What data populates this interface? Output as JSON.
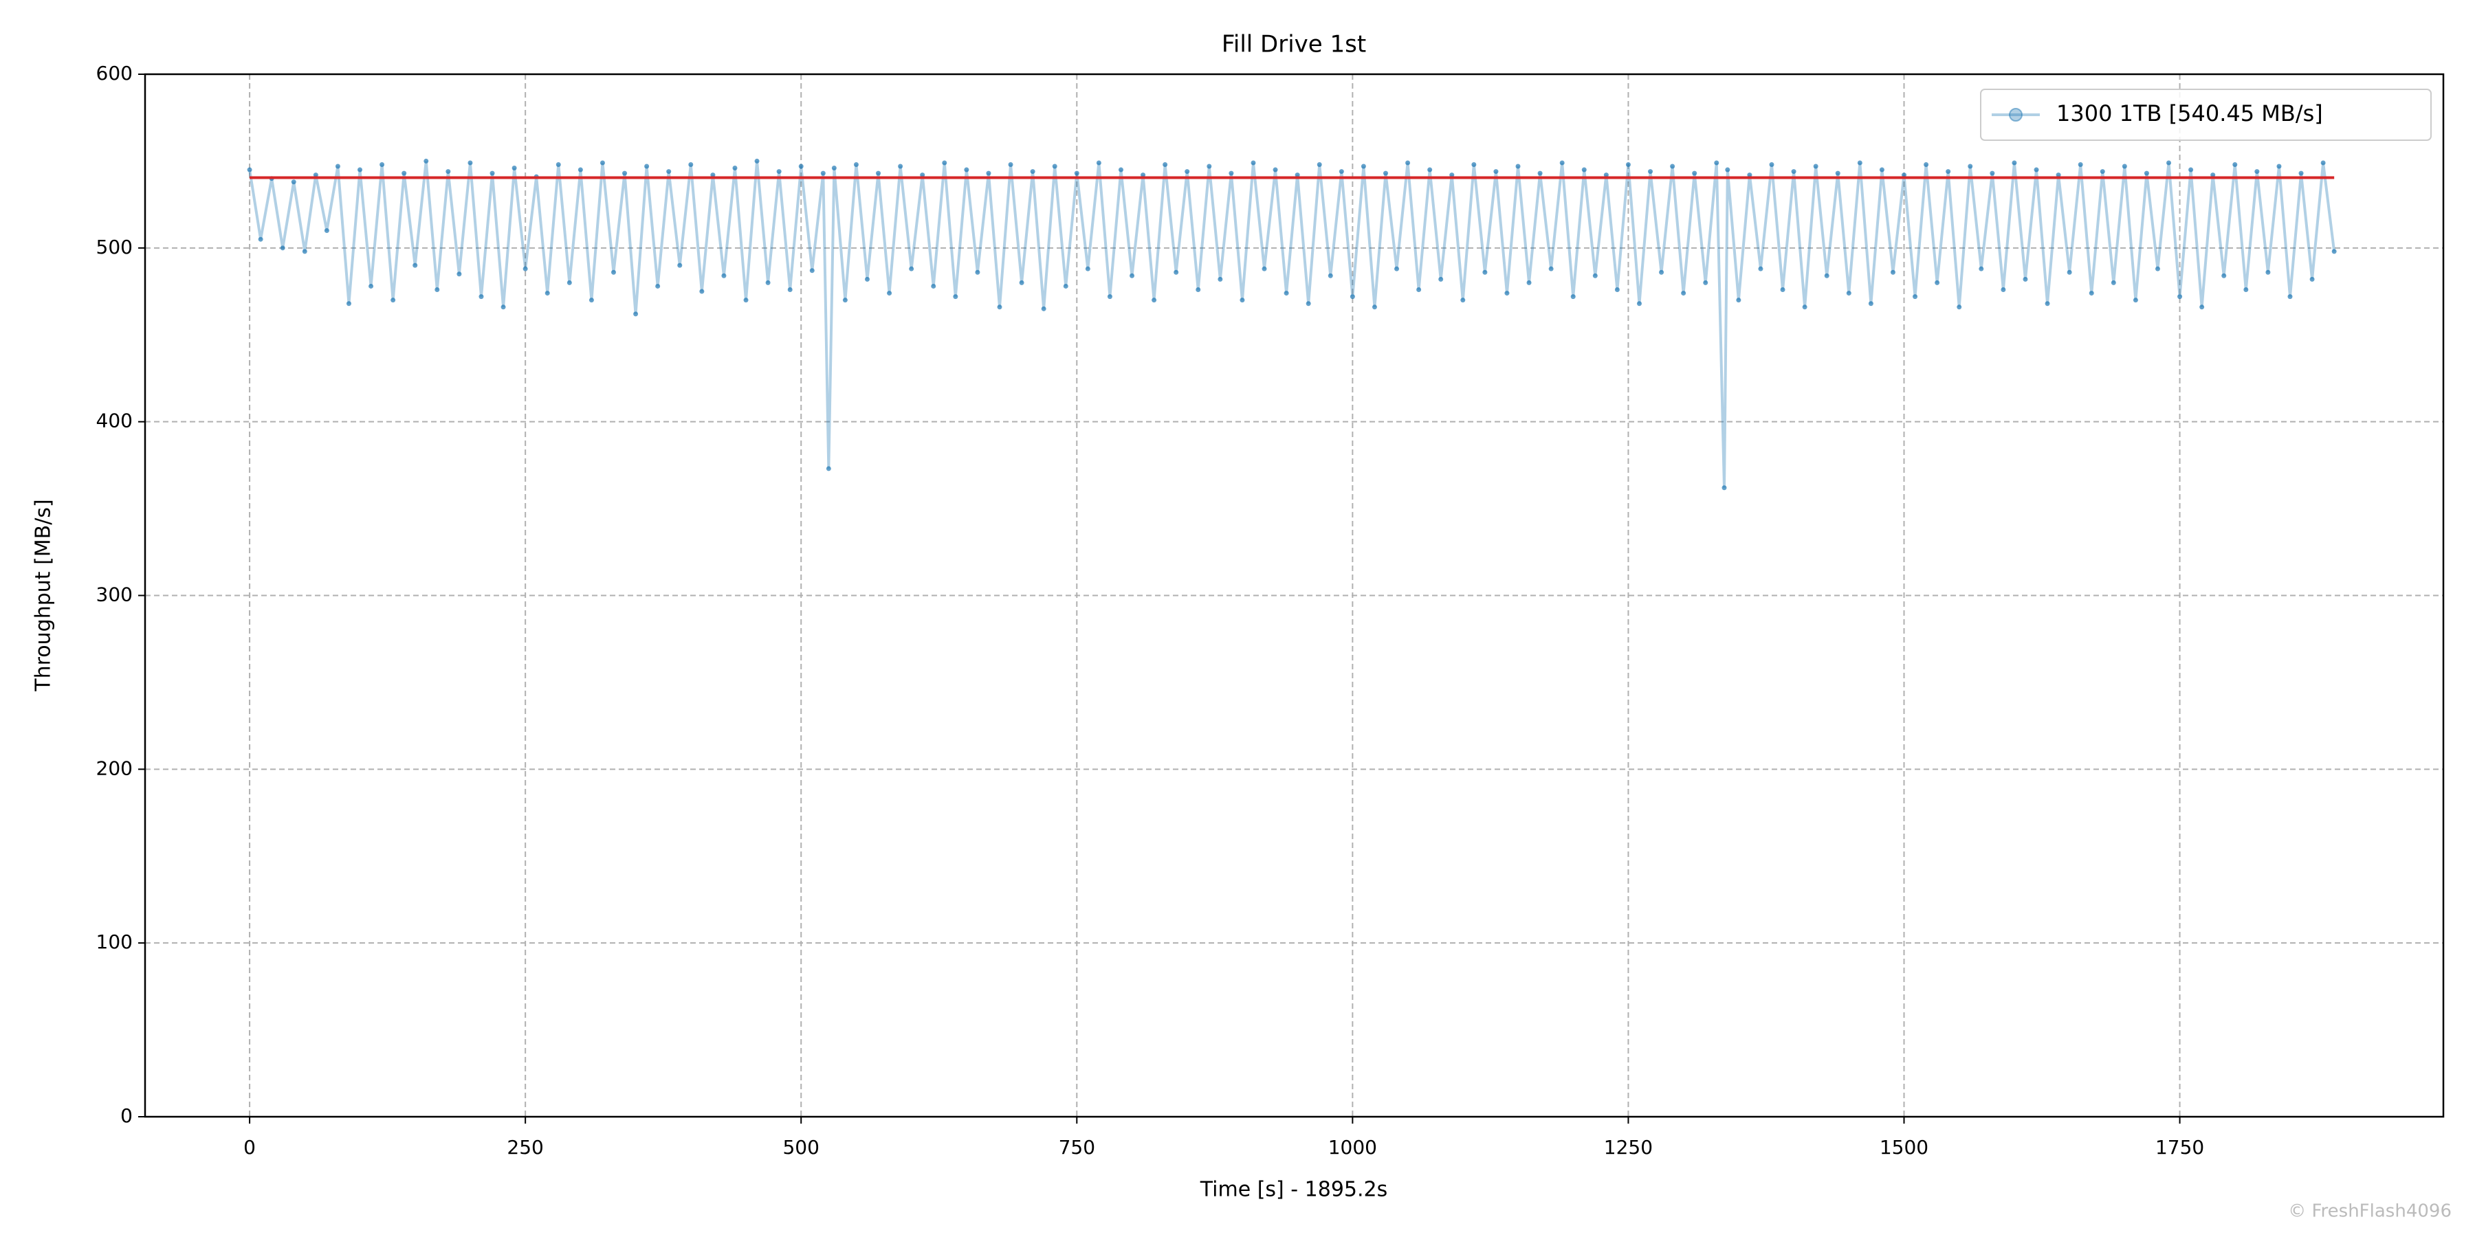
{
  "chart_data": {
    "type": "line",
    "title": "Fill Drive 1st",
    "xlabel": "Time [s] - 1895.2s",
    "ylabel": "Throughput [MB/s]",
    "watermark": "© FreshFlash4096",
    "xlim": [
      -94.8,
      1989
    ],
    "ylim": [
      0,
      600
    ],
    "xticks": [
      0,
      250,
      500,
      750,
      1000,
      1250,
      1500,
      1750
    ],
    "yticks": [
      0,
      100,
      200,
      300,
      400,
      500,
      600
    ],
    "grid": true,
    "legend": "upper right",
    "mean_line": {
      "value": 540.45,
      "color": "#d62728"
    },
    "series": [
      {
        "name": "1300 1TB [540.45 MB/s]",
        "color": "#1f77b4",
        "x": [
          0,
          10,
          20,
          30,
          40,
          50,
          60,
          70,
          80,
          90,
          100,
          110,
          120,
          130,
          140,
          150,
          160,
          170,
          180,
          190,
          200,
          210,
          220,
          230,
          240,
          250,
          260,
          270,
          280,
          290,
          300,
          310,
          320,
          330,
          340,
          350,
          360,
          370,
          380,
          390,
          400,
          410,
          420,
          430,
          440,
          450,
          460,
          470,
          480,
          490,
          500,
          510,
          520,
          525,
          530,
          540,
          550,
          560,
          570,
          580,
          590,
          600,
          610,
          620,
          630,
          640,
          650,
          660,
          670,
          680,
          690,
          700,
          710,
          720,
          730,
          740,
          750,
          760,
          770,
          780,
          790,
          800,
          810,
          820,
          830,
          840,
          850,
          860,
          870,
          880,
          890,
          900,
          910,
          920,
          930,
          940,
          950,
          960,
          970,
          980,
          990,
          1000,
          1010,
          1020,
          1030,
          1040,
          1050,
          1060,
          1070,
          1080,
          1090,
          1100,
          1110,
          1120,
          1130,
          1140,
          1150,
          1160,
          1170,
          1180,
          1190,
          1200,
          1210,
          1220,
          1230,
          1240,
          1250,
          1260,
          1270,
          1280,
          1290,
          1300,
          1310,
          1320,
          1330,
          1337,
          1340,
          1350,
          1360,
          1370,
          1380,
          1390,
          1400,
          1410,
          1420,
          1430,
          1440,
          1450,
          1460,
          1470,
          1480,
          1490,
          1500,
          1510,
          1520,
          1530,
          1540,
          1550,
          1560,
          1570,
          1580,
          1590,
          1600,
          1610,
          1620,
          1630,
          1640,
          1650,
          1660,
          1670,
          1680,
          1690,
          1700,
          1710,
          1720,
          1730,
          1740,
          1750,
          1760,
          1770,
          1780,
          1790,
          1800,
          1810,
          1820,
          1830,
          1840,
          1850,
          1860,
          1870,
          1880,
          1890
        ],
        "values": [
          545,
          505,
          540,
          500,
          538,
          498,
          542,
          510,
          547,
          468,
          545,
          478,
          548,
          470,
          543,
          490,
          550,
          476,
          544,
          485,
          549,
          472,
          543,
          466,
          546,
          488,
          541,
          474,
          548,
          480,
          545,
          470,
          549,
          486,
          543,
          462,
          547,
          478,
          544,
          490,
          548,
          475,
          542,
          484,
          546,
          470,
          550,
          480,
          544,
          476,
          547,
          487,
          543,
          373,
          546,
          470,
          548,
          482,
          543,
          474,
          547,
          488,
          542,
          478,
          549,
          472,
          545,
          486,
          543,
          466,
          548,
          480,
          544,
          465,
          547,
          478,
          543,
          488,
          549,
          472,
          545,
          484,
          542,
          470,
          548,
          486,
          544,
          476,
          547,
          482,
          543,
          470,
          549,
          488,
          545,
          474,
          542,
          468,
          548,
          484,
          544,
          472,
          547,
          466,
          543,
          488,
          549,
          476,
          545,
          482,
          542,
          470,
          548,
          486,
          544,
          474,
          547,
          480,
          543,
          488,
          549,
          472,
          545,
          484,
          542,
          476,
          548,
          468,
          544,
          486,
          547,
          474,
          543,
          480,
          549,
          362,
          545,
          470,
          542,
          488,
          548,
          476,
          544,
          466,
          547,
          484,
          543,
          474,
          549,
          468,
          545,
          486,
          542,
          472,
          548,
          480,
          544,
          466,
          547,
          488,
          543,
          476,
          549,
          482,
          545,
          468,
          542,
          486,
          548,
          474,
          544,
          480,
          547,
          470,
          543,
          488,
          549,
          472,
          545,
          466,
          542,
          484,
          548,
          476,
          544,
          486,
          547,
          472,
          543,
          482,
          549,
          498
        ]
      }
    ]
  }
}
